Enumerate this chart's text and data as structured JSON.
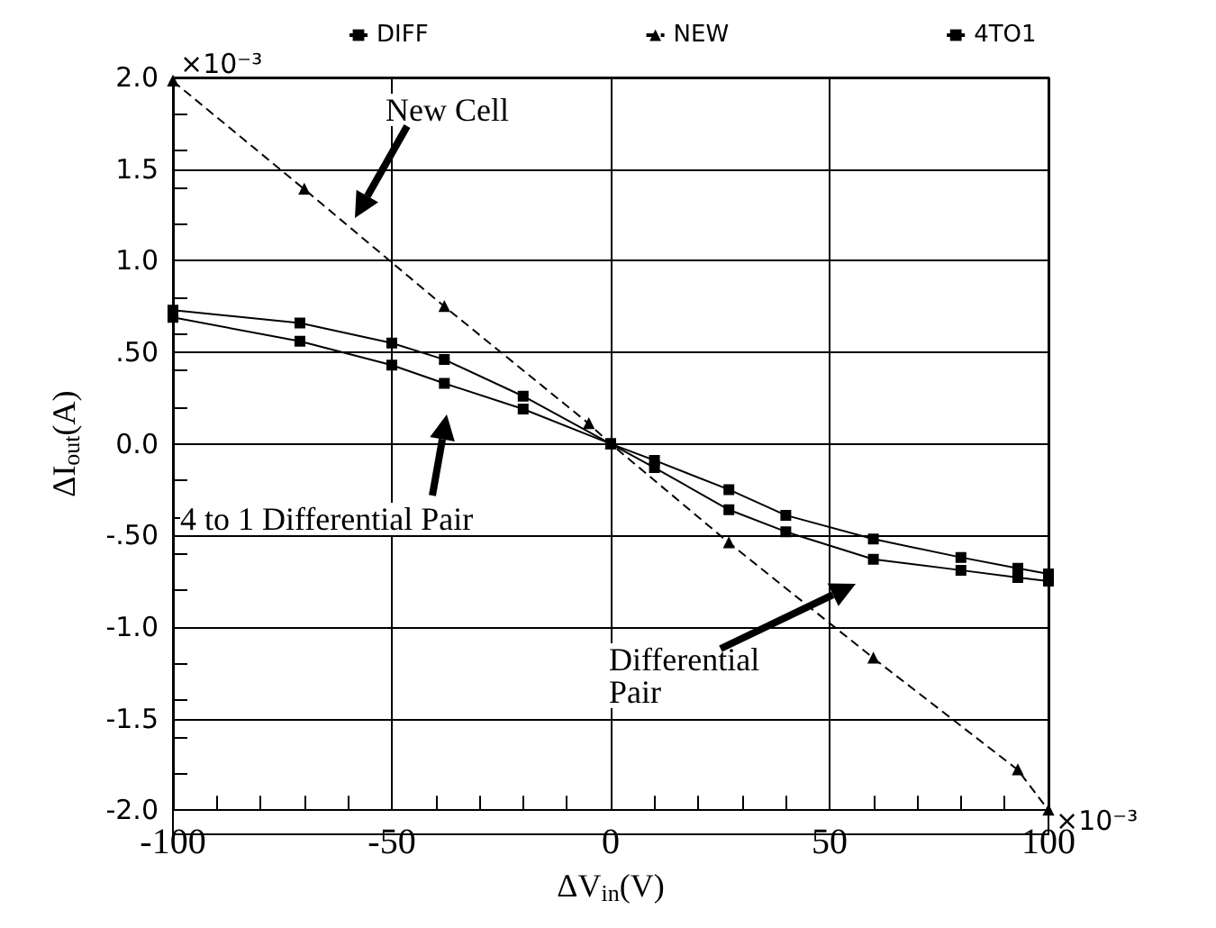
{
  "chart_data": {
    "type": "line",
    "xlabel": "ΔV$_{in}$(V)",
    "ylabel": "ΔI$_{out}$(A)",
    "xlim": [
      -100,
      100
    ],
    "xticks": [
      -100,
      -50,
      0,
      50,
      100
    ],
    "ylim": [
      -2,
      2
    ],
    "yticks": [
      {
        "value": 2,
        "label": "2.0"
      },
      {
        "value": 1.5,
        "label": "1.5"
      },
      {
        "value": 1,
        "label": "1.0"
      },
      {
        "value": 0.5,
        "label": ".50"
      },
      {
        "value": 0,
        "label": "0.0"
      },
      {
        "value": -0.5,
        "label": "-.50"
      },
      {
        "value": -1,
        "label": "-1.0"
      },
      {
        "value": -1.5,
        "label": "-1.5"
      },
      {
        "value": -2,
        "label": "-2.0"
      }
    ],
    "grid": true,
    "legend": "top",
    "series": [
      {
        "name": "DIFF",
        "color": "#000000",
        "marker": "square",
        "line_style": "solid",
        "x": [
          -100,
          -71,
          -50,
          -38,
          -20,
          0,
          10,
          27,
          40,
          60,
          80,
          93,
          100
        ],
        "values": [
          0.73,
          0.66,
          0.55,
          0.46,
          0.26,
          0,
          -0.13,
          -0.36,
          -0.48,
          -0.63,
          -0.69,
          -0.73,
          -0.75
        ]
      },
      {
        "name": "NEW",
        "color": "#000000",
        "marker": "triangle",
        "line_style": "dashed",
        "x": [
          -100,
          -70,
          -38,
          -5,
          0,
          27,
          60,
          93,
          100
        ],
        "values": [
          1.98,
          1.39,
          0.75,
          0.11,
          0,
          -0.54,
          -1.17,
          -1.78,
          -2.0
        ]
      },
      {
        "name": "4TO1",
        "color": "#000000",
        "marker": "square",
        "line_style": "solid",
        "x": [
          -100,
          -71,
          -50,
          -38,
          -20,
          0,
          10,
          27,
          40,
          60,
          80,
          93,
          100
        ],
        "values": [
          0.69,
          0.56,
          0.43,
          0.33,
          0.19,
          0,
          -0.09,
          -0.25,
          -0.39,
          -0.52,
          -0.62,
          -0.68,
          -0.71
        ]
      }
    ],
    "annotations": [
      "×10⁻³",
      "×10⁻³",
      "New Cell",
      "4 to 1 Differential Pair",
      "Differential Pair"
    ]
  }
}
